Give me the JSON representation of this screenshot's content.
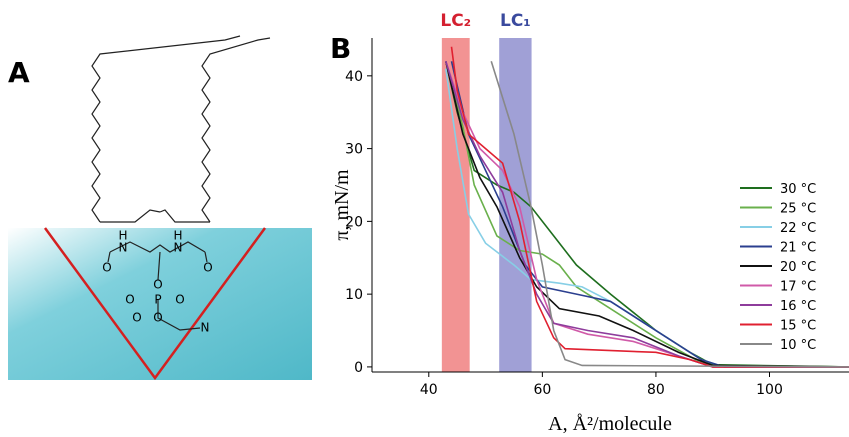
{
  "panel_a": {
    "label": "A",
    "atoms": [
      "H",
      "N",
      "H",
      "N",
      "O",
      "O",
      "O",
      "O",
      "O",
      "P",
      "O",
      "O",
      "N"
    ]
  },
  "chart_data": {
    "type": "line",
    "panel_label": "B",
    "x_label": "A, Å²/molecule",
    "y_label": "π, mN/m",
    "xlim": [
      30,
      114
    ],
    "ylim": [
      -0.7,
      45.2
    ],
    "xticks": [
      40,
      60,
      80,
      100
    ],
    "yticks": [
      0,
      10,
      20,
      30,
      40
    ],
    "bands": [
      {
        "label": "LC₂",
        "range": [
          42.3,
          47.2
        ],
        "color": "#f08080"
      },
      {
        "label": "LC₁",
        "range": [
          52.4,
          58.1
        ],
        "color": "#8f8fcf"
      }
    ],
    "series": [
      {
        "name": "30 °C",
        "color": "#1e6e1e",
        "x": [
          43,
          45,
          48,
          52,
          55,
          58,
          62,
          66,
          72,
          80,
          86,
          90,
          114
        ],
        "values": [
          42,
          35,
          27,
          25,
          24,
          22,
          18,
          14,
          10,
          5,
          2,
          0.3,
          0
        ]
      },
      {
        "name": "25 °C",
        "color": "#6ab04c",
        "x": [
          43,
          46,
          48,
          52,
          56,
          60,
          63,
          66,
          72,
          80,
          87,
          90,
          114
        ],
        "values": [
          42,
          33,
          25,
          18,
          16,
          15.5,
          14,
          11,
          8,
          4,
          1,
          0.2,
          0
        ]
      },
      {
        "name": "22 °C",
        "color": "#87cfe6",
        "x": [
          43,
          45,
          47,
          50,
          55,
          58,
          63,
          67,
          72,
          80,
          88,
          92,
          114
        ],
        "values": [
          41,
          30,
          21,
          17,
          14,
          12,
          11.5,
          11,
          9,
          5,
          1,
          0,
          0
        ]
      },
      {
        "name": "21 °C",
        "color": "#2b3f8f",
        "x": [
          44,
          47,
          50,
          53,
          57,
          60,
          66,
          72,
          80,
          88,
          92,
          114
        ],
        "values": [
          42,
          32,
          27,
          22,
          14,
          11,
          10,
          9,
          5,
          1,
          0,
          0
        ]
      },
      {
        "name": "20 °C",
        "color": "#111111",
        "x": [
          43,
          46,
          49,
          52,
          56,
          59,
          63,
          70,
          76,
          84,
          90,
          114
        ],
        "values": [
          42,
          32,
          26,
          22,
          15,
          11,
          8,
          7,
          5,
          2,
          0.2,
          0
        ]
      },
      {
        "name": "17 °C",
        "color": "#d05aa8",
        "x": [
          43,
          46,
          49,
          53,
          56,
          59,
          62,
          68,
          76,
          84,
          90,
          114
        ],
        "values": [
          42,
          35,
          30,
          27,
          22,
          12,
          6,
          4.5,
          3.5,
          1.5,
          0,
          0
        ]
      },
      {
        "name": "16 °C",
        "color": "#8e3c9c",
        "x": [
          43,
          46,
          49,
          53,
          56,
          59,
          62,
          68,
          76,
          84,
          90,
          114
        ],
        "values": [
          42,
          34,
          29,
          24,
          16,
          10,
          6,
          5,
          4,
          1.5,
          0,
          0
        ]
      },
      {
        "name": "15 °C",
        "color": "#e02030",
        "x": [
          44,
          45,
          47,
          50,
          53,
          56,
          59,
          62,
          64,
          80,
          86,
          90,
          114
        ],
        "values": [
          44,
          38,
          32,
          30,
          28,
          20,
          9,
          4,
          2.5,
          2,
          1,
          0,
          0
        ]
      },
      {
        "name": "10 °C",
        "color": "#888888",
        "x": [
          51,
          55,
          58,
          60,
          62,
          64,
          67,
          114
        ],
        "values": [
          42,
          32,
          22,
          14,
          5,
          1,
          0.2,
          0
        ]
      }
    ]
  }
}
